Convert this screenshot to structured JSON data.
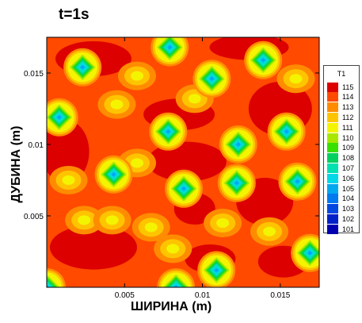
{
  "chart_data": {
    "type": "heatmap",
    "title": "t=1s",
    "xlabel": "ШИРИНА (m)",
    "ylabel": "ДУБИНА (m)",
    "xlim": [
      0,
      0.0175
    ],
    "ylim": [
      0,
      0.0175
    ],
    "x_ticks": [
      {
        "value": 0.005,
        "label": "0.005"
      },
      {
        "value": 0.01,
        "label": "0.01"
      },
      {
        "value": 0.015,
        "label": "0.015"
      }
    ],
    "y_ticks": [
      {
        "value": 0.005,
        "label": "0.005"
      },
      {
        "value": 0.01,
        "label": "0.01"
      },
      {
        "value": 0.015,
        "label": "0.015"
      }
    ],
    "legend": {
      "title": "T1",
      "levels": [
        {
          "value": "115",
          "color": "#dd0000"
        },
        {
          "value": "114",
          "color": "#ff4a00"
        },
        {
          "value": "113",
          "color": "#ff8c00"
        },
        {
          "value": "112",
          "color": "#ffc400"
        },
        {
          "value": "111",
          "color": "#f4f400"
        },
        {
          "value": "110",
          "color": "#a8e800"
        },
        {
          "value": "109",
          "color": "#38e000"
        },
        {
          "value": "108",
          "color": "#00d060"
        },
        {
          "value": "107",
          "color": "#00e0b0"
        },
        {
          "value": "106",
          "color": "#00d8e8"
        },
        {
          "value": "105",
          "color": "#00a8f0"
        },
        {
          "value": "104",
          "color": "#0078f0"
        },
        {
          "value": "103",
          "color": "#0048e0"
        },
        {
          "value": "102",
          "color": "#0020c8"
        },
        {
          "value": "101",
          "color": "#0000b0"
        }
      ]
    },
    "t_min": 101,
    "t_max": 115,
    "cold_spots": [
      {
        "x": 0.0023,
        "y": 0.0154
      },
      {
        "x": 0.0079,
        "y": 0.0168
      },
      {
        "x": 0.0139,
        "y": 0.0159
      },
      {
        "x": 0.0106,
        "y": 0.0146
      },
      {
        "x": 0.0008,
        "y": 0.0119
      },
      {
        "x": 0.0078,
        "y": 0.0109
      },
      {
        "x": 0.0123,
        "y": 0.01
      },
      {
        "x": 0.0154,
        "y": 0.0109
      },
      {
        "x": 0.0043,
        "y": 0.0079
      },
      {
        "x": 0.0088,
        "y": 0.0069
      },
      {
        "x": 0.0122,
        "y": 0.0073
      },
      {
        "x": 0.0161,
        "y": 0.0074
      },
      {
        "x": 0.0169,
        "y": 0.0024
      },
      {
        "x": 0.0109,
        "y": 0.0012
      },
      {
        "x": 0.0,
        "y": 0.0
      },
      {
        "x": 0.0083,
        "y": 0.0
      }
    ],
    "warm_pockets": [
      {
        "x": 0.0045,
        "y": 0.0128
      },
      {
        "x": 0.0113,
        "y": 0.0045
      },
      {
        "x": 0.0143,
        "y": 0.0039
      },
      {
        "x": 0.0014,
        "y": 0.0075
      },
      {
        "x": 0.0024,
        "y": 0.0047
      },
      {
        "x": 0.0058,
        "y": 0.0087
      },
      {
        "x": 0.0067,
        "y": 0.0042
      },
      {
        "x": 0.0081,
        "y": 0.0027
      },
      {
        "x": 0.0095,
        "y": 0.0132
      },
      {
        "x": 0.0058,
        "y": 0.0148
      },
      {
        "x": 0.016,
        "y": 0.0146
      },
      {
        "x": 0.0042,
        "y": 0.0047
      }
    ],
    "grid": false
  }
}
